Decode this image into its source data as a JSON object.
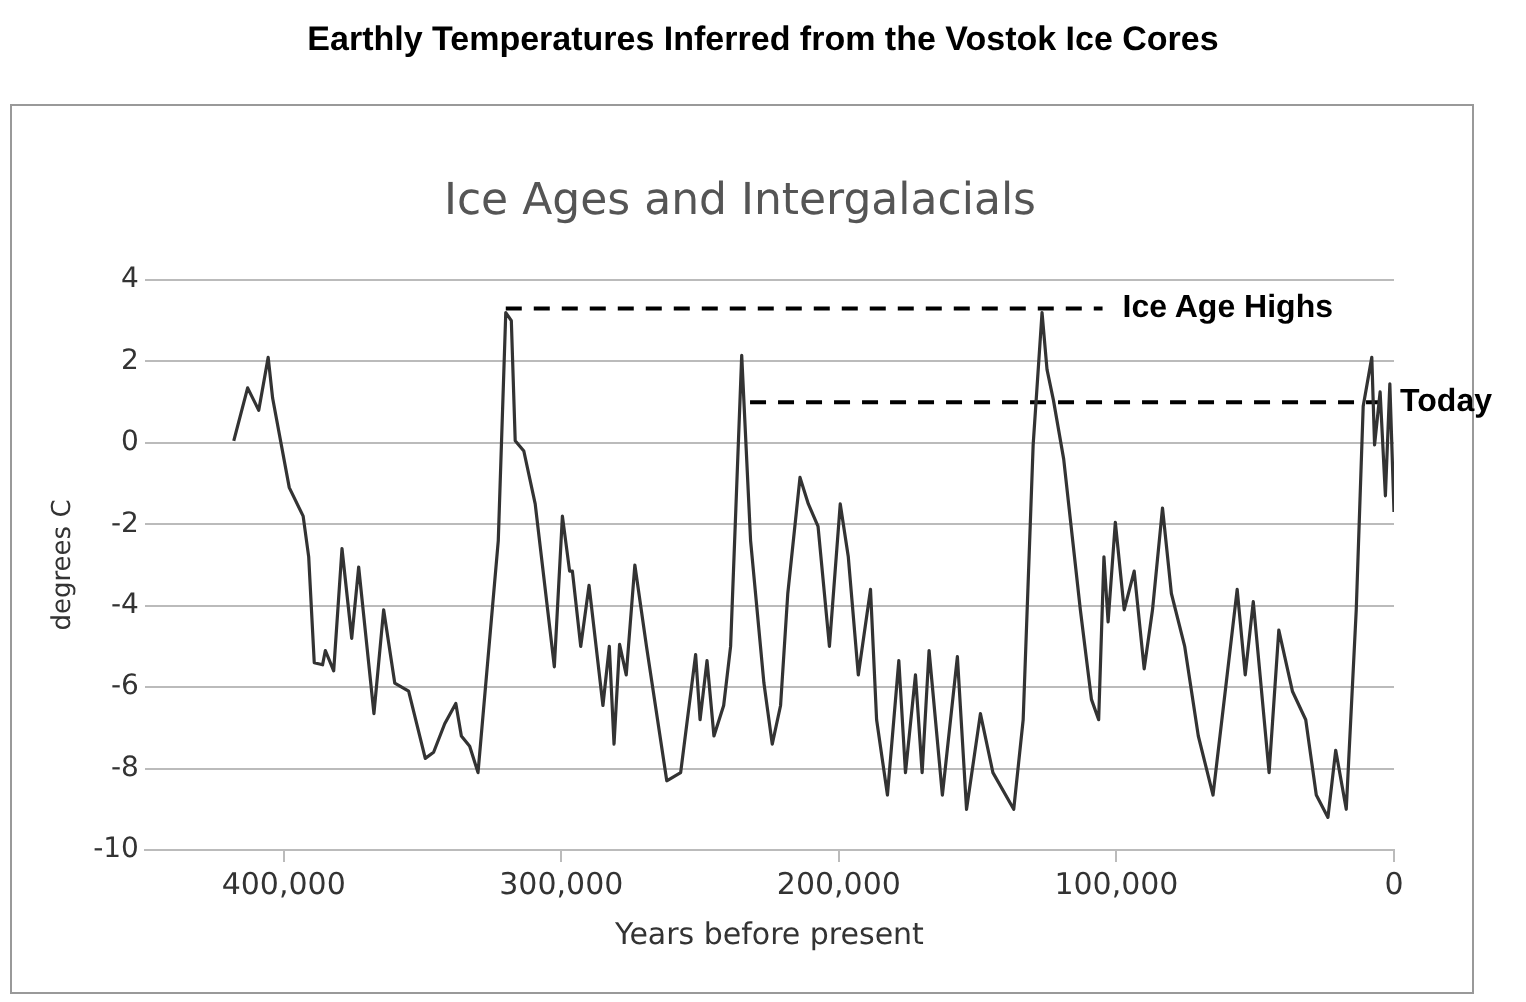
{
  "chart_data": {
    "type": "line",
    "title": "Earthly Temperatures Inferred from the Vostok Ice Cores",
    "subtitle": "Ice Ages and Intergalacials",
    "xlabel": "Years before present",
    "ylabel": "degrees C",
    "xlim": [
      450000,
      0
    ],
    "xticks": [
      {
        "value": 400000,
        "label": "400,000"
      },
      {
        "value": 300000,
        "label": "300,000"
      },
      {
        "value": 200000,
        "label": "200,000"
      },
      {
        "value": 100000,
        "label": "100,000"
      },
      0
    ],
    "ylim": [
      -10,
      4
    ],
    "yticks": [
      -10,
      -8,
      -6,
      -4,
      -2,
      0,
      2,
      4
    ],
    "grid": "y",
    "legend": false,
    "marker": "none",
    "series": [
      {
        "color": "#333333",
        "line_style": "solid",
        "x": [
          418000,
          413000,
          409000,
          405600,
          404000,
          398000,
          393000,
          391000,
          389000,
          386000,
          385000,
          382000,
          379000,
          375500,
          373000,
          367500,
          364000,
          360000,
          355000,
          349000,
          346000,
          342000,
          338000,
          336000,
          333000,
          330000,
          322700,
          320000,
          318000,
          316600,
          313500,
          309400,
          302500,
          299600,
          297000,
          296000,
          293000,
          290000,
          285000,
          282700,
          281000,
          279000,
          276600,
          273500,
          269300,
          262000,
          257000,
          251600,
          250000,
          247500,
          245000,
          241500,
          239000,
          235000,
          231800,
          227000,
          224000,
          221000,
          218400,
          214000,
          211000,
          207500,
          203400,
          199500,
          196600,
          193000,
          188600,
          186400,
          182500,
          178400,
          176000,
          172400,
          170000,
          167500,
          162700,
          157300,
          154000,
          149000,
          144500,
          137000,
          133600,
          130000,
          126800,
          125000,
          122700,
          119000,
          113000,
          109000,
          106400,
          104500,
          103000,
          100400,
          97200,
          93600,
          90000,
          87000,
          83400,
          80200,
          75400,
          70500,
          65200,
          60800,
          56500,
          53600,
          50700,
          45000,
          41500,
          36600,
          31800,
          28000,
          23800,
          21000,
          17200,
          13600,
          11100,
          8000,
          7000,
          5000,
          3100,
          1500,
          0
        ],
        "values": [
          0.05,
          1.35,
          0.8,
          2.1,
          1.1,
          -1.1,
          -1.8,
          -2.8,
          -5.4,
          -5.45,
          -5.1,
          -5.6,
          -2.6,
          -4.8,
          -3.05,
          -6.65,
          -4.1,
          -5.9,
          -6.1,
          -7.75,
          -7.6,
          -6.9,
          -6.4,
          -7.2,
          -7.45,
          -8.1,
          -2.4,
          3.2,
          3.0,
          0.05,
          -0.2,
          -1.5,
          -5.5,
          -1.8,
          -3.15,
          -3.15,
          -5.0,
          -3.5,
          -6.45,
          -5.0,
          -7.4,
          -4.95,
          -5.7,
          -3.0,
          -5.0,
          -8.3,
          -8.1,
          -5.2,
          -6.8,
          -5.35,
          -7.2,
          -6.45,
          -5.0,
          2.15,
          -2.4,
          -5.9,
          -7.4,
          -6.45,
          -3.7,
          -0.85,
          -1.5,
          -2.05,
          -5.0,
          -1.5,
          -2.8,
          -5.7,
          -3.6,
          -6.8,
          -8.65,
          -5.35,
          -8.1,
          -5.7,
          -8.1,
          -5.1,
          -8.65,
          -5.25,
          -9.0,
          -6.65,
          -8.1,
          -9.0,
          -6.8,
          -0.05,
          3.2,
          1.8,
          1.05,
          -0.4,
          -4.1,
          -6.3,
          -6.8,
          -2.8,
          -4.4,
          -1.95,
          -4.1,
          -3.15,
          -5.55,
          -4.1,
          -1.6,
          -3.7,
          -5.0,
          -7.2,
          -8.65,
          -6.1,
          -3.6,
          -5.7,
          -3.9,
          -8.1,
          -4.6,
          -6.1,
          -6.8,
          -8.65,
          -9.2,
          -7.55,
          -9.0,
          -4.1,
          0.9,
          2.1,
          -0.05,
          1.25,
          -1.3,
          1.45,
          -1.7
        ]
      },
      {
        "name": "Ice Age Highs",
        "color": "#000000",
        "line_style": "dashed",
        "x": [
          320000,
          105000
        ],
        "values": [
          3.3,
          3.3
        ]
      },
      {
        "name": "Today",
        "color": "#000000",
        "line_style": "dashed",
        "x": [
          232000,
          5000
        ],
        "values": [
          1.0,
          1.0
        ]
      }
    ]
  }
}
